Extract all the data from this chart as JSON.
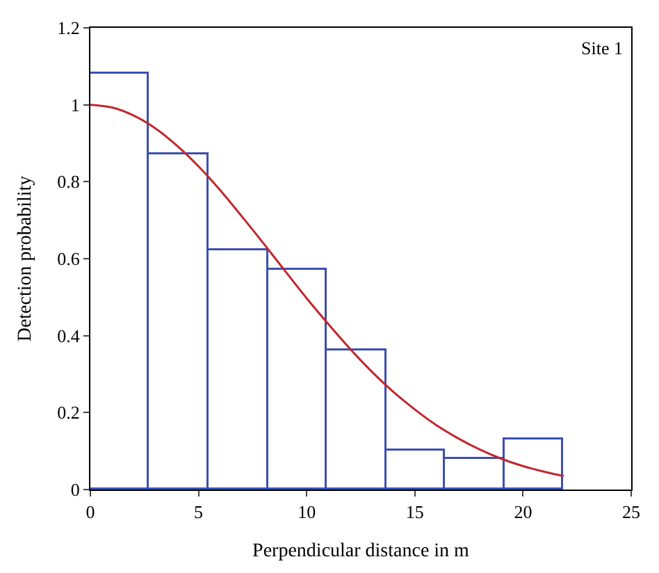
{
  "chart_data": {
    "type": "histogram",
    "xlabel": "Perpendicular distance in m",
    "ylabel": "Detection probability",
    "annotations": [
      "Site 1"
    ],
    "bins": [
      0,
      2.73,
      5.47,
      8.2,
      10.94,
      13.67,
      16.41,
      19.14,
      21.88
    ],
    "values": [
      1.08,
      0.87,
      0.62,
      0.57,
      0.36,
      0.1,
      0.08,
      0.13
    ],
    "color": "#3b4fb0",
    "series": [
      {
        "type": "line",
        "color": "#c0272d",
        "x": [
          0,
          1,
          2,
          3,
          4,
          5,
          6,
          7,
          8,
          9,
          10,
          11,
          12,
          13,
          14,
          15,
          16,
          17,
          18,
          19,
          20,
          21,
          21.88
        ],
        "values": [
          1,
          0.993,
          0.972,
          0.939,
          0.894,
          0.84,
          0.778,
          0.71,
          0.64,
          0.568,
          0.497,
          0.43,
          0.366,
          0.307,
          0.254,
          0.208,
          0.167,
          0.133,
          0.104,
          0.08,
          0.061,
          0.046,
          0.035
        ]
      }
    ],
    "xlim": [
      0,
      25
    ],
    "xticks": [
      0,
      5,
      10,
      15,
      20,
      25
    ],
    "ylim": [
      0,
      1.2
    ],
    "yticks": [
      0,
      0.2,
      0.4,
      0.6,
      0.8,
      1,
      1.2
    ]
  }
}
